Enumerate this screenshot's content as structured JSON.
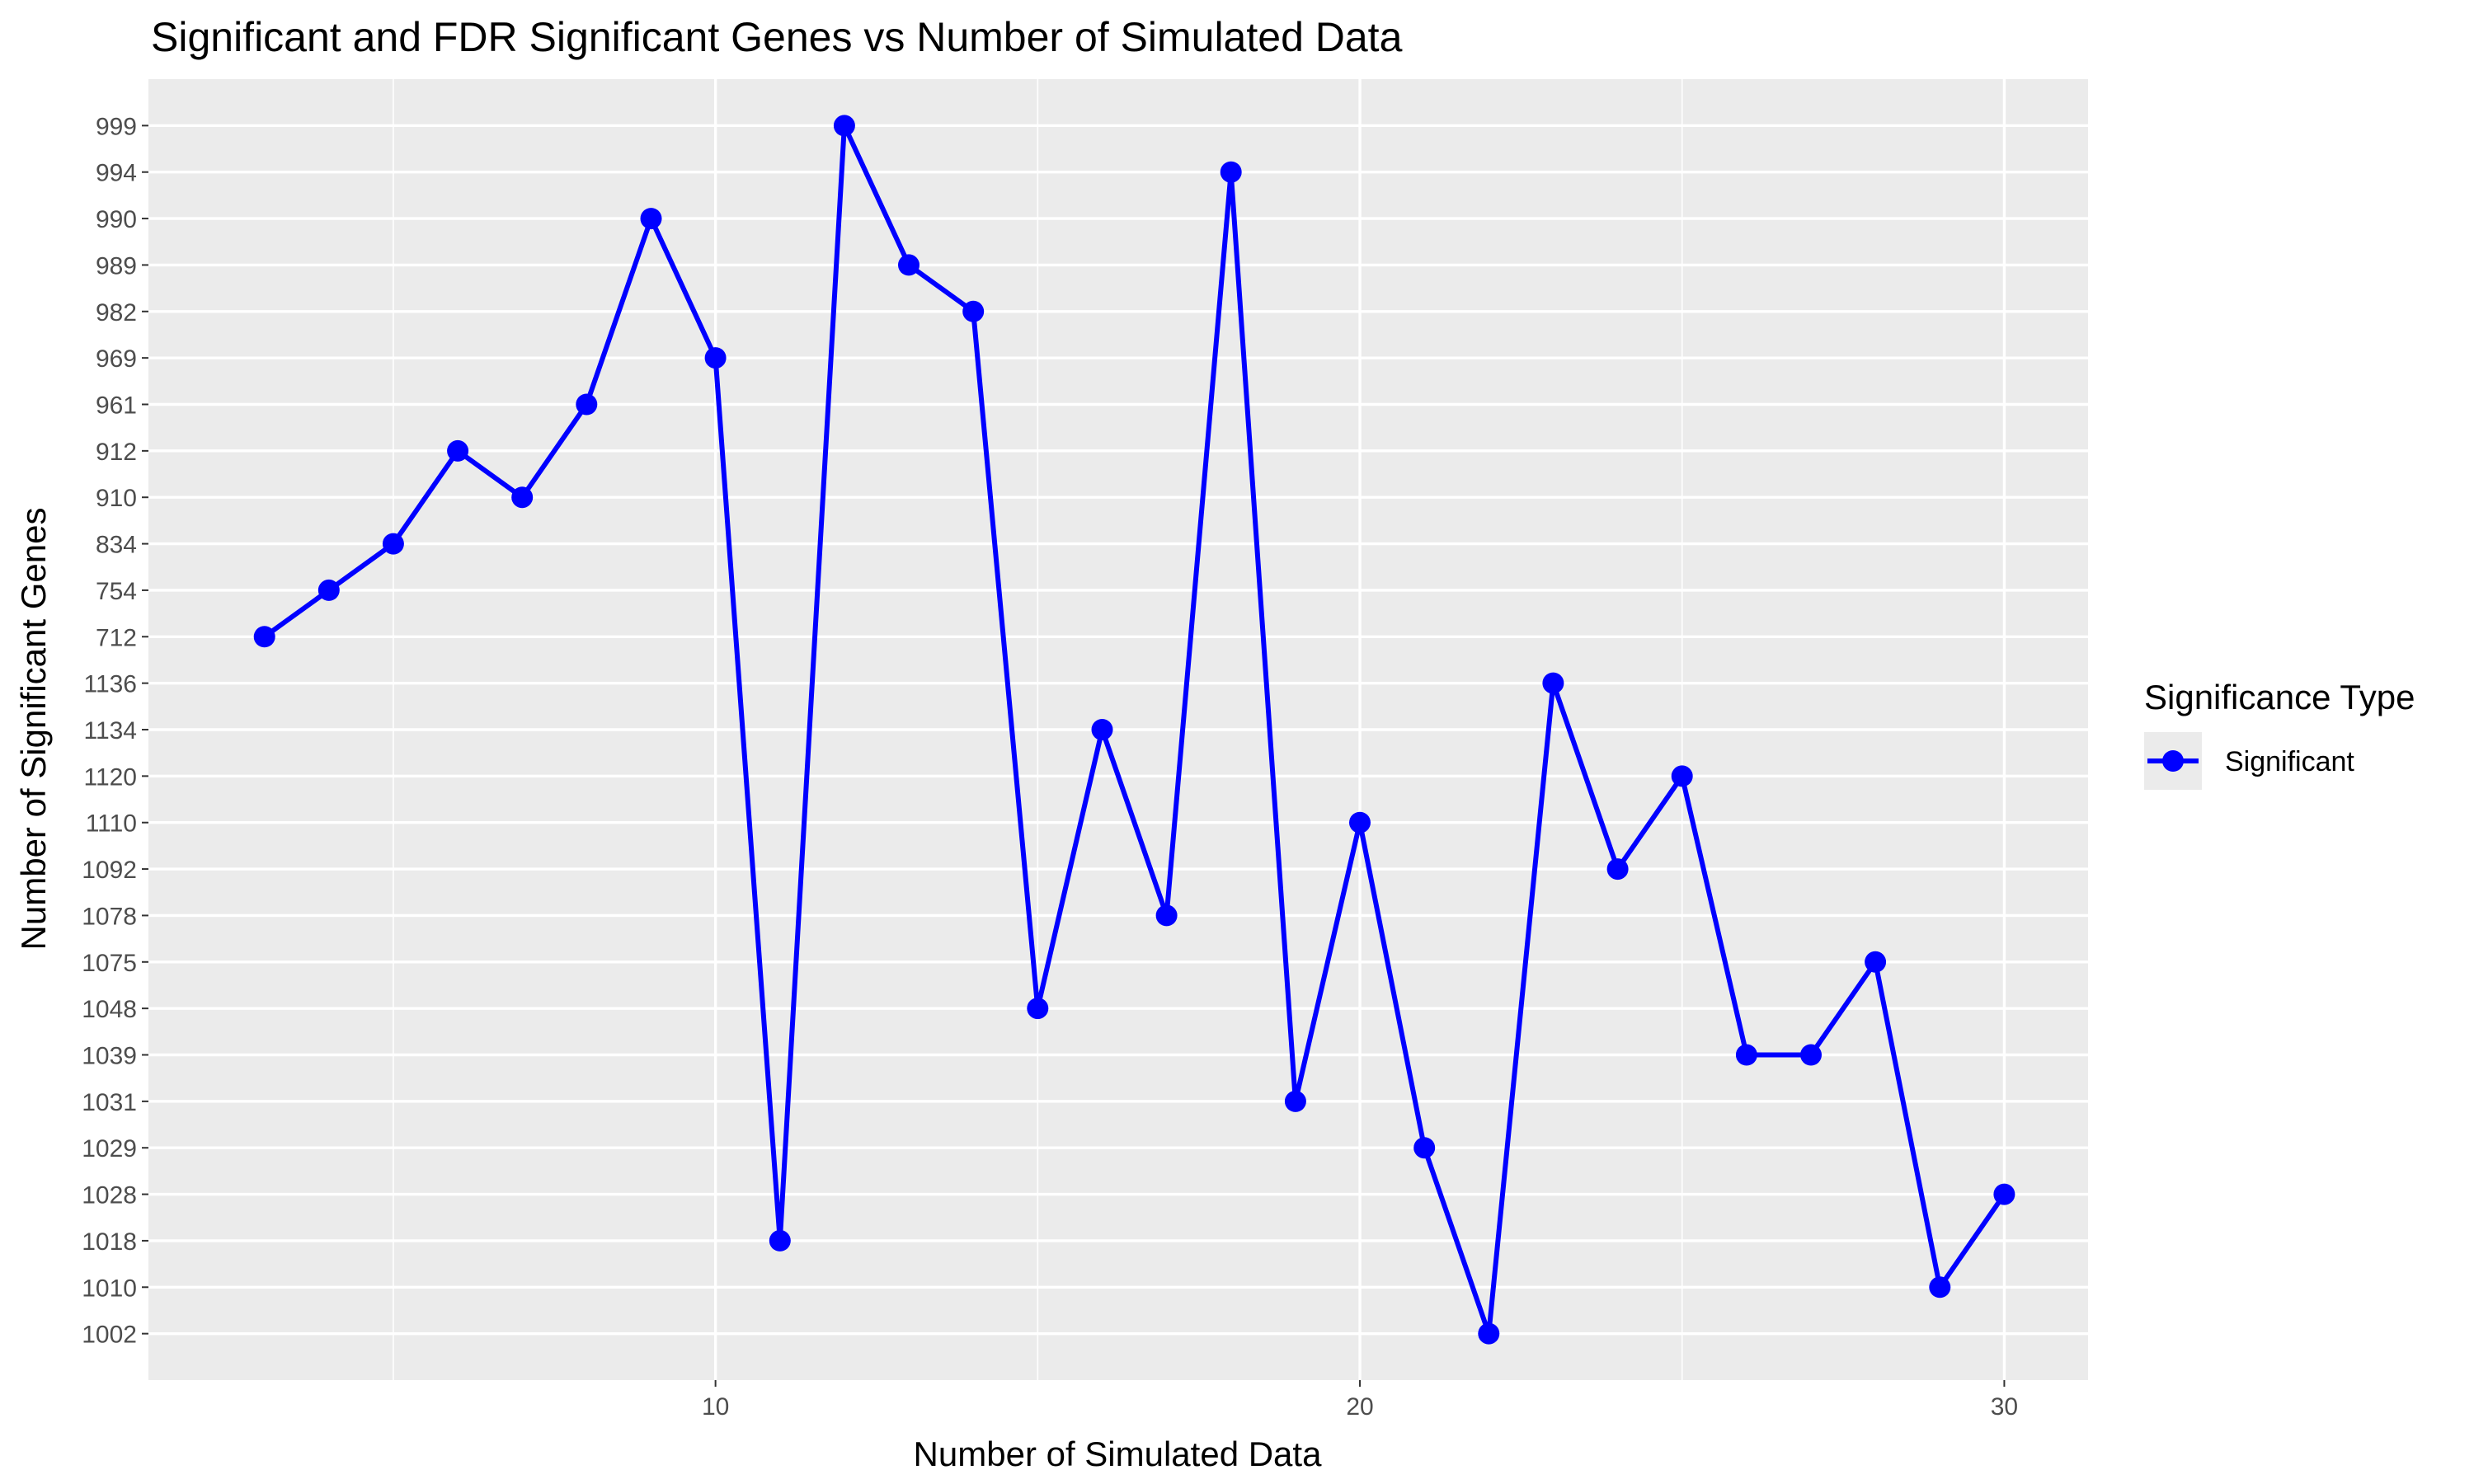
{
  "chart_data": {
    "type": "line",
    "title": "Significant and FDR Significant Genes vs Number of Simulated Data",
    "xlabel": "Number of Simulated Data",
    "ylabel": "Number of Significant Genes",
    "x_ticks": [
      10,
      20,
      30
    ],
    "xlim": [
      1.2,
      31.3
    ],
    "y_scale": "discrete",
    "y_categories": [
      "1002",
      "1010",
      "1018",
      "1028",
      "1029",
      "1031",
      "1039",
      "1048",
      "1075",
      "1078",
      "1092",
      "1110",
      "1120",
      "1134",
      "1136",
      "712",
      "754",
      "834",
      "910",
      "912",
      "961",
      "969",
      "982",
      "989",
      "990",
      "994",
      "999"
    ],
    "grid": true,
    "legend_position": "right",
    "legend_title": "Significance Type",
    "series": [
      {
        "name": "Significant",
        "color": "#0000FF",
        "x": [
          3,
          4,
          5,
          6,
          7,
          8,
          9,
          10,
          11,
          12,
          13,
          14,
          15,
          16,
          17,
          18,
          19,
          20,
          21,
          22,
          23,
          24,
          25,
          26,
          27,
          28,
          29,
          30
        ],
        "y": [
          "712",
          "754",
          "834",
          "912",
          "910",
          "961",
          "990",
          "969",
          "1018",
          "999",
          "989",
          "982",
          "1048",
          "1134",
          "1078",
          "994",
          "1031",
          "1110",
          "1029",
          "1002",
          "1136",
          "1092",
          "1120",
          "1039",
          "1039",
          "1075",
          "1010",
          "1028"
        ]
      }
    ]
  }
}
